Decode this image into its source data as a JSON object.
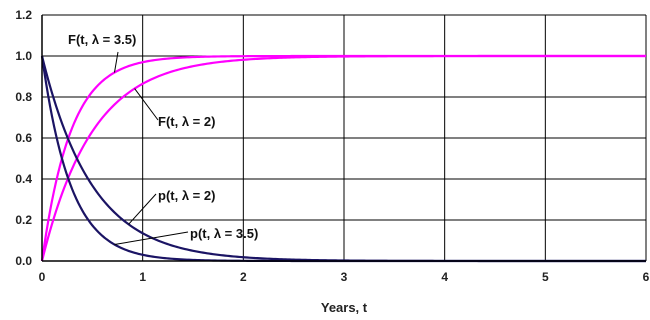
{
  "chart_data": {
    "type": "line",
    "title": "",
    "xlabel": "Years, t",
    "ylabel": "",
    "xlim": [
      0,
      6
    ],
    "ylim": [
      0,
      1.2
    ],
    "x_ticks": [
      "0",
      "1",
      "2",
      "3",
      "4",
      "5",
      "6"
    ],
    "y_ticks": [
      "0.0",
      "0.2",
      "0.4",
      "0.6",
      "0.8",
      "1.0",
      "1.2"
    ],
    "grid": true,
    "legend": "none",
    "series": [
      {
        "key": "F35",
        "color": "#ff00ff",
        "x": [
          0,
          0.25,
          0.5,
          0.75,
          1,
          1.5,
          2,
          2.5,
          3,
          4,
          5,
          6
        ],
        "y": [
          0,
          0.583,
          0.826,
          0.928,
          0.97,
          0.995,
          0.999,
          1.0,
          1.0,
          1.0,
          1.0,
          1.0
        ]
      },
      {
        "key": "F2",
        "color": "#ff00ff",
        "x": [
          0,
          0.25,
          0.5,
          0.75,
          1,
          1.5,
          2,
          2.5,
          3,
          4,
          5,
          6
        ],
        "y": [
          0,
          0.393,
          0.632,
          0.777,
          0.865,
          0.95,
          0.982,
          0.993,
          0.998,
          1.0,
          1.0,
          1.0
        ]
      },
      {
        "key": "p2",
        "color": "#1b1464",
        "x": [
          0,
          0.25,
          0.5,
          0.75,
          1,
          1.5,
          2,
          2.5,
          3,
          4,
          5,
          6
        ],
        "y": [
          1.0,
          0.607,
          0.368,
          0.223,
          0.135,
          0.05,
          0.018,
          0.007,
          0.002,
          0,
          0,
          0
        ]
      },
      {
        "key": "p35",
        "color": "#1b1464",
        "x": [
          0,
          0.25,
          0.5,
          0.75,
          1,
          1.5,
          2,
          2.5,
          3,
          4,
          5,
          6
        ],
        "y": [
          1.0,
          0.417,
          0.174,
          0.072,
          0.03,
          0.005,
          0.001,
          0,
          0,
          0,
          0,
          0
        ]
      }
    ],
    "annotations": [
      {
        "text": "F(t, λ = 3.5)",
        "target": "F35"
      },
      {
        "text": "F(t, λ = 2)",
        "target": "F2"
      },
      {
        "text": "p(t, λ = 2)",
        "target": "p2"
      },
      {
        "text": "p(t, λ = 3.5)",
        "target": "p35"
      }
    ]
  }
}
